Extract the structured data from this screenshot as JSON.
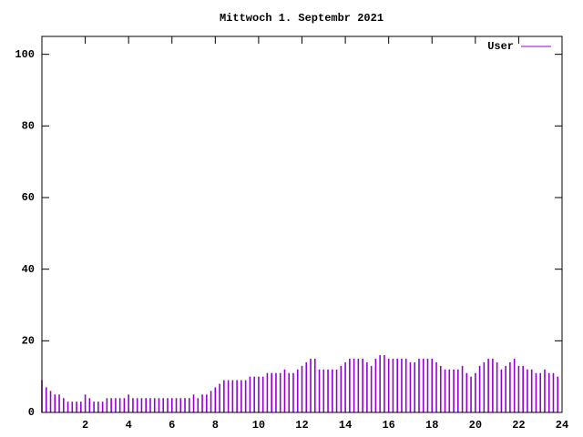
{
  "chart_data": {
    "type": "impulses",
    "title": "Mittwoch 1. Septembr 2021",
    "series": [
      {
        "name": "User",
        "color": "#9400d3",
        "x": [
          0,
          0.2,
          0.4,
          0.6,
          0.8,
          1,
          1.2,
          1.4,
          1.6,
          1.8,
          2,
          2.2,
          2.4,
          2.6,
          2.8,
          3,
          3.2,
          3.4,
          3.6,
          3.8,
          4,
          4.2,
          4.4,
          4.6,
          4.8,
          5,
          5.2,
          5.4,
          5.6,
          5.8,
          6,
          6.2,
          6.4,
          6.6,
          6.8,
          7,
          7.2,
          7.4,
          7.6,
          7.8,
          8,
          8.2,
          8.4,
          8.6,
          8.8,
          9,
          9.2,
          9.4,
          9.6,
          9.8,
          10,
          10.2,
          10.4,
          10.6,
          10.8,
          11,
          11.2,
          11.4,
          11.6,
          11.8,
          12,
          12.2,
          12.4,
          12.6,
          12.8,
          13,
          13.2,
          13.4,
          13.6,
          13.8,
          14,
          14.2,
          14.4,
          14.6,
          14.8,
          15,
          15.2,
          15.4,
          15.6,
          15.8,
          16,
          16.2,
          16.4,
          16.6,
          16.8,
          17,
          17.2,
          17.4,
          17.6,
          17.8,
          18,
          18.2,
          18.4,
          18.6,
          18.8,
          19,
          19.2,
          19.4,
          19.6,
          19.8,
          20,
          20.2,
          20.4,
          20.6,
          20.8,
          21,
          21.2,
          21.4,
          21.6,
          21.8,
          22,
          22.2,
          22.4,
          22.6,
          22.8,
          23,
          23.2,
          23.4,
          23.6,
          23.8
        ],
        "values": [
          9,
          7,
          6,
          5,
          5,
          4,
          3,
          3,
          3,
          3,
          5,
          4,
          3,
          3,
          3,
          4,
          4,
          4,
          4,
          4,
          5,
          4,
          4,
          4,
          4,
          4,
          4,
          4,
          4,
          4,
          4,
          4,
          4,
          4,
          4,
          5,
          4,
          5,
          5,
          6,
          7,
          8,
          9,
          9,
          9,
          9,
          9,
          9,
          10,
          10,
          10,
          10,
          11,
          11,
          11,
          11,
          12,
          11,
          11,
          12,
          13,
          14,
          15,
          15,
          12,
          12,
          12,
          12,
          12,
          13,
          14,
          15,
          15,
          15,
          15,
          14,
          13,
          15,
          16,
          16,
          15,
          15,
          15,
          15,
          15,
          14,
          14,
          15,
          15,
          15,
          15,
          14,
          13,
          12,
          12,
          12,
          12,
          13,
          11,
          10,
          11,
          13,
          14,
          15,
          15,
          14,
          12,
          13,
          14,
          15,
          13,
          13,
          12,
          12,
          11,
          11,
          12,
          11,
          11,
          10
        ]
      }
    ],
    "xlim": [
      0,
      24
    ],
    "xticks": [
      2,
      4,
      6,
      8,
      10,
      12,
      14,
      16,
      18,
      20,
      22,
      24
    ],
    "ylim": [
      0,
      105
    ],
    "yticks": [
      0,
      20,
      40,
      60,
      80,
      100
    ],
    "legend": "top-right"
  }
}
